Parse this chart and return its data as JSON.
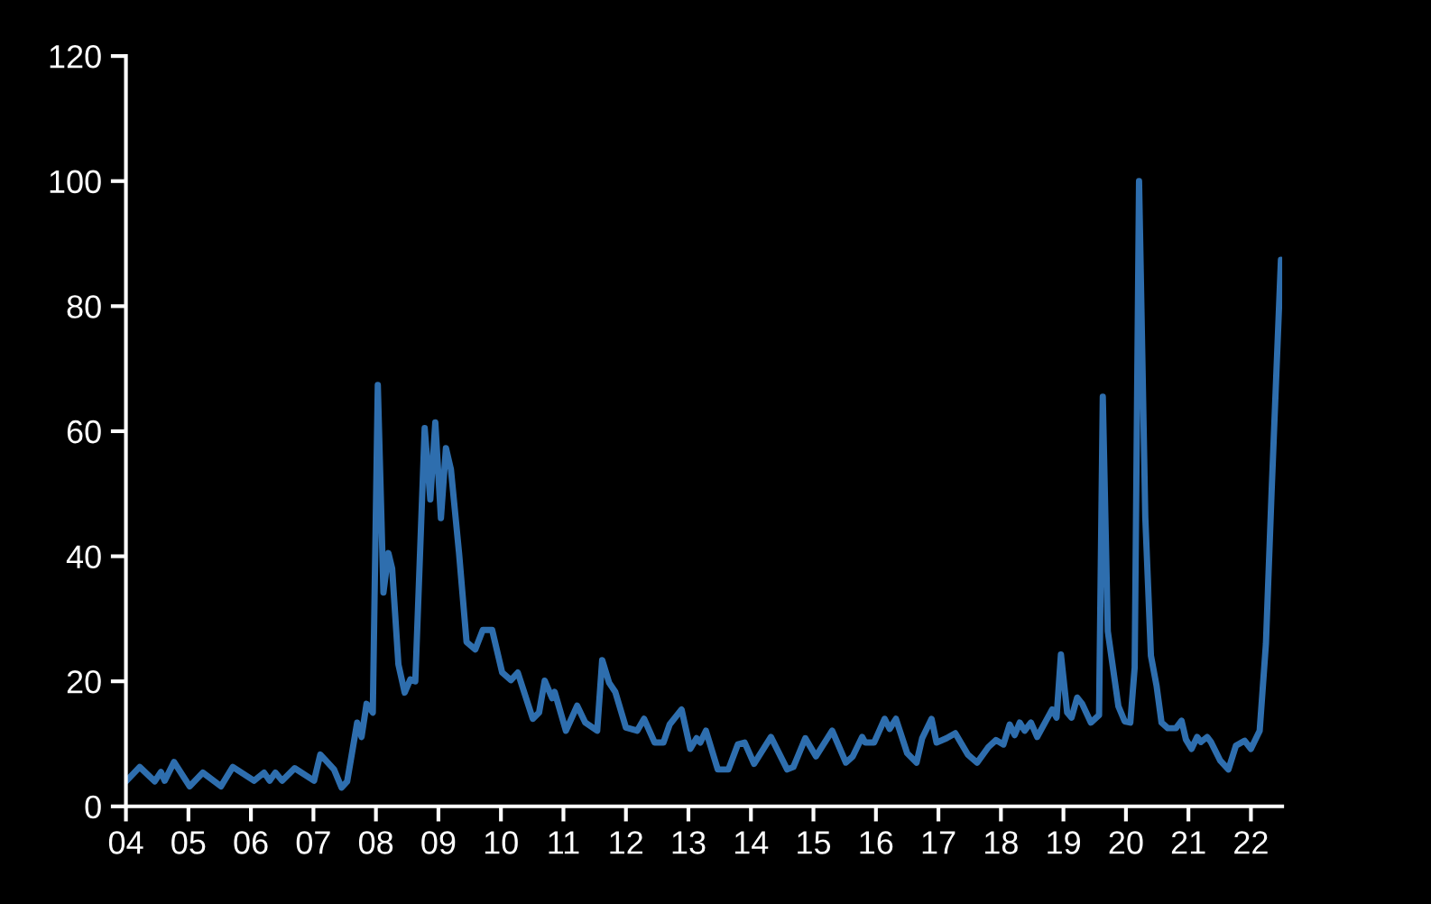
{
  "chart_data": {
    "type": "line",
    "x": [
      2004.0,
      2004.22,
      2004.46,
      2004.56,
      2004.62,
      2004.77,
      2005.02,
      2005.23,
      2005.52,
      2005.71,
      2006.05,
      2006.21,
      2006.3,
      2006.39,
      2006.5,
      2006.7,
      2007.01,
      2007.11,
      2007.33,
      2007.45,
      2007.54,
      2007.7,
      2007.77,
      2007.85,
      2007.95,
      2008.03,
      2008.12,
      2008.2,
      2008.26,
      2008.36,
      2008.46,
      2008.55,
      2008.63,
      2008.78,
      2008.87,
      2008.95,
      2009.04,
      2009.12,
      2009.2,
      2009.33,
      2009.45,
      2009.59,
      2009.71,
      2009.86,
      2010.02,
      2010.16,
      2010.27,
      2010.51,
      2010.61,
      2010.7,
      2010.82,
      2010.86,
      2011.04,
      2011.22,
      2011.35,
      2011.54,
      2011.62,
      2011.73,
      2011.83,
      2012.0,
      2012.18,
      2012.29,
      2012.46,
      2012.6,
      2012.7,
      2012.89,
      2013.03,
      2013.13,
      2013.19,
      2013.28,
      2013.47,
      2013.64,
      2013.79,
      2013.9,
      2014.05,
      2014.32,
      2014.58,
      2014.68,
      2014.87,
      2015.04,
      2015.3,
      2015.52,
      2015.63,
      2015.78,
      2015.83,
      2015.97,
      2016.14,
      2016.22,
      2016.32,
      2016.5,
      2016.65,
      2016.74,
      2016.89,
      2016.97,
      2017.13,
      2017.27,
      2017.47,
      2017.62,
      2017.8,
      2017.92,
      2018.04,
      2018.14,
      2018.22,
      2018.3,
      2018.38,
      2018.48,
      2018.58,
      2018.82,
      2018.89,
      2018.96,
      2019.06,
      2019.13,
      2019.22,
      2019.3,
      2019.44,
      2019.57,
      2019.63,
      2019.71,
      2019.88,
      2019.98,
      2020.07,
      2020.14,
      2020.21,
      2020.31,
      2020.4,
      2020.49,
      2020.57,
      2020.67,
      2020.8,
      2020.89,
      2020.96,
      2021.05,
      2021.14,
      2021.2,
      2021.3,
      2021.36,
      2021.51,
      2021.64,
      2021.76,
      2021.9,
      2022.0,
      2022.14,
      2022.24,
      2022.33,
      2022.48
    ],
    "values": [
      4.0,
      6.3,
      4.0,
      5.5,
      4.1,
      7.1,
      3.2,
      5.4,
      3.2,
      6.3,
      4.1,
      5.4,
      4.1,
      5.4,
      4.1,
      6.1,
      4.1,
      8.3,
      5.9,
      3.0,
      4.0,
      13.4,
      11.1,
      16.4,
      15.0,
      67.4,
      34.2,
      40.5,
      38.0,
      22.7,
      18.2,
      20.3,
      20.0,
      60.5,
      49.1,
      61.4,
      46.1,
      57.3,
      53.9,
      40.5,
      26.3,
      25.1,
      28.2,
      28.2,
      21.4,
      20.2,
      21.4,
      14.0,
      15.0,
      20.1,
      17.3,
      18.3,
      12.1,
      16.1,
      13.4,
      12.1,
      23.4,
      19.8,
      18.3,
      12.6,
      12.1,
      14.0,
      10.2,
      10.2,
      13.1,
      15.5,
      9.2,
      10.9,
      10.2,
      12.1,
      5.9,
      5.9,
      9.9,
      10.2,
      6.8,
      11.1,
      5.9,
      6.3,
      10.9,
      8.0,
      12.1,
      7.0,
      8.0,
      11.1,
      10.2,
      10.2,
      14.0,
      12.4,
      14.0,
      8.5,
      7.0,
      10.9,
      14.0,
      10.2,
      10.9,
      11.7,
      8.3,
      7.0,
      9.5,
      10.6,
      9.9,
      13.1,
      11.4,
      13.4,
      12.1,
      13.4,
      11.1,
      15.5,
      14.2,
      24.3,
      15.0,
      14.2,
      17.4,
      16.4,
      13.4,
      14.6,
      65.5,
      28.0,
      16.0,
      13.6,
      13.4,
      22.2,
      100.0,
      46.2,
      24.1,
      19.3,
      13.4,
      12.5,
      12.5,
      13.7,
      10.7,
      9.2,
      11.1,
      10.3,
      11.1,
      10.3,
      7.3,
      5.9,
      9.7,
      10.5,
      9.2,
      12.1,
      26.0,
      50.1,
      87.4
    ],
    "color": "#2e6eae",
    "xlim": [
      2004,
      2022.5
    ],
    "xticks": [
      {
        "value": 2004,
        "label": "04"
      },
      {
        "value": 2005,
        "label": "05"
      },
      {
        "value": 2006,
        "label": "06"
      },
      {
        "value": 2007,
        "label": "07"
      },
      {
        "value": 2008,
        "label": "08"
      },
      {
        "value": 2009,
        "label": "09"
      },
      {
        "value": 2010,
        "label": "10"
      },
      {
        "value": 2011,
        "label": "11"
      },
      {
        "value": 2012,
        "label": "12"
      },
      {
        "value": 2013,
        "label": "13"
      },
      {
        "value": 2014,
        "label": "14"
      },
      {
        "value": 2015,
        "label": "15"
      },
      {
        "value": 2016,
        "label": "16"
      },
      {
        "value": 2017,
        "label": "17"
      },
      {
        "value": 2018,
        "label": "18"
      },
      {
        "value": 2019,
        "label": "19"
      },
      {
        "value": 2020,
        "label": "20"
      },
      {
        "value": 2021,
        "label": "21"
      },
      {
        "value": 2022,
        "label": "22"
      }
    ],
    "ylim": [
      0,
      120
    ],
    "yticks": [
      0,
      20,
      40,
      60,
      80,
      100,
      120
    ],
    "grid": false,
    "legend": false
  }
}
